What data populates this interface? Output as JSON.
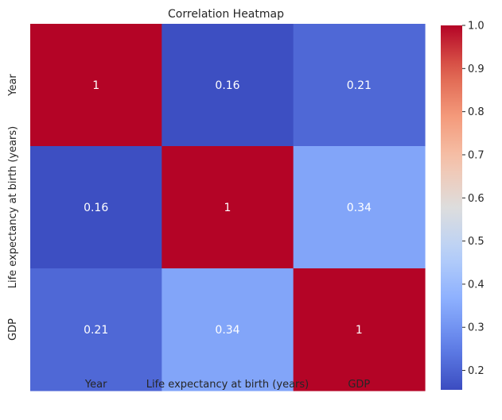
{
  "chart_data": {
    "type": "heatmap",
    "title": "Correlation Heatmap",
    "x_categories": [
      "Year",
      "Life expectancy at birth (years)",
      "GDP"
    ],
    "y_categories": [
      "Year",
      "Life expectancy at birth (years)",
      "GDP"
    ],
    "values": [
      [
        1,
        0.16,
        0.21
      ],
      [
        0.16,
        1,
        0.34
      ],
      [
        0.21,
        0.34,
        1
      ]
    ],
    "value_labels": [
      [
        "1",
        "0.16",
        "0.21"
      ],
      [
        "0.16",
        "1",
        "0.34"
      ],
      [
        "0.21",
        "0.34",
        "1"
      ]
    ],
    "colormap": "coolwarm",
    "colorbar": {
      "min": 0.155,
      "max": 1.0,
      "ticks": [
        0.2,
        0.3,
        0.4,
        0.5,
        0.6,
        0.7,
        0.8,
        0.9,
        1.0
      ],
      "tick_labels": [
        "0.2",
        "0.3",
        "0.4",
        "0.5",
        "0.6",
        "0.7",
        "0.8",
        "0.9",
        "1.0"
      ]
    },
    "colors": {
      "high": "#b40426",
      "low": "#3b4cc0",
      "annotation_text": "#ffffff",
      "label_text": "#262626"
    }
  }
}
